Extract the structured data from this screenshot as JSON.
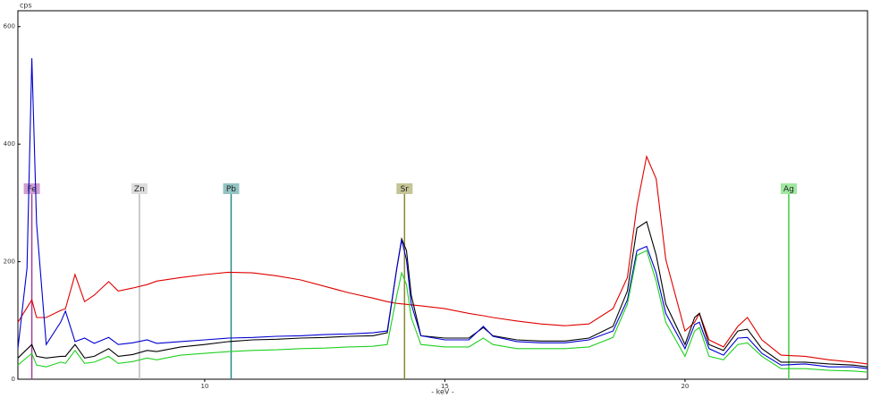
{
  "chart_data": {
    "type": "line",
    "y_label": "cps",
    "x_label": "- keV -",
    "xlim": [
      6.11,
      23.8
    ],
    "ylim": [
      0,
      627
    ],
    "xticks": [
      10,
      15,
      20
    ],
    "yticks": [
      0,
      200,
      400,
      600
    ],
    "markers": [
      {
        "label": "Fe",
        "x": 6.4,
        "color": "#a0409a"
      },
      {
        "label": "Zn",
        "x": 8.64,
        "color": "#bbbbbb"
      },
      {
        "label": "Pb",
        "x": 10.55,
        "color": "#2a8a8a"
      },
      {
        "label": "Sr",
        "x": 14.16,
        "color": "#8a8a30"
      },
      {
        "label": "Ag",
        "x": 22.16,
        "color": "#40d040"
      }
    ],
    "series": [
      {
        "color": "#e00000",
        "x": [
          6.11,
          6.4,
          6.5,
          6.7,
          7.0,
          7.1,
          7.3,
          7.5,
          7.7,
          8.0,
          8.2,
          8.5,
          8.8,
          9.0,
          9.5,
          10,
          10.5,
          11,
          11.5,
          12,
          12.5,
          13,
          13.5,
          13.8,
          14.0,
          14.5,
          15,
          15.5,
          15.8,
          16,
          16.5,
          17,
          17.5,
          18,
          18.5,
          18.8,
          19.0,
          19.2,
          19.4,
          19.6,
          20,
          20.2,
          20.3,
          20.5,
          20.8,
          21.1,
          21.3,
          21.6,
          22,
          22.5,
          23,
          23.5,
          23.8
        ],
        "values": [
          97,
          135,
          105,
          105,
          117,
          120,
          178,
          132,
          143,
          166,
          150,
          155,
          161,
          167,
          173,
          178,
          182,
          181,
          176,
          169,
          158,
          147,
          138,
          132,
          129,
          125,
          120,
          112,
          108,
          105,
          99,
          94,
          91,
          94,
          120,
          173,
          295,
          379,
          341,
          204,
          82,
          97,
          112,
          67,
          55,
          90,
          105,
          67,
          41,
          39,
          33,
          29,
          26
        ]
      },
      {
        "color": "#000000",
        "x": [
          6.11,
          6.4,
          6.5,
          6.7,
          7.0,
          7.1,
          7.3,
          7.5,
          7.7,
          8.0,
          8.2,
          8.5,
          8.8,
          9.0,
          9.5,
          10,
          10.5,
          11,
          11.5,
          12,
          12.5,
          13,
          13.5,
          13.8,
          14.0,
          14.1,
          14.2,
          14.3,
          14.5,
          15,
          15.5,
          15.8,
          16,
          16.5,
          17,
          17.5,
          18,
          18.5,
          18.8,
          19.0,
          19.2,
          19.4,
          19.6,
          20,
          20.2,
          20.3,
          20.5,
          20.8,
          21.1,
          21.3,
          21.6,
          22,
          22.5,
          23,
          23.5,
          23.8
        ],
        "values": [
          36,
          59,
          39,
          36,
          39,
          39,
          59,
          36,
          39,
          52,
          39,
          42,
          49,
          47,
          55,
          59,
          64,
          67,
          68,
          70,
          71,
          73,
          74,
          79,
          189,
          239,
          219,
          143,
          74,
          70,
          70,
          88,
          74,
          67,
          65,
          65,
          70,
          90,
          150,
          257,
          268,
          211,
          128,
          59,
          105,
          112,
          59,
          49,
          82,
          85,
          52,
          29,
          29,
          26,
          24,
          21
        ]
      },
      {
        "color": "#0000d0",
        "x": [
          6.11,
          6.3,
          6.4,
          6.5,
          6.7,
          7.0,
          7.1,
          7.3,
          7.5,
          7.7,
          8.0,
          8.2,
          8.5,
          8.8,
          9.0,
          9.5,
          10,
          10.5,
          11,
          11.5,
          12,
          12.5,
          13,
          13.5,
          13.8,
          14.0,
          14.1,
          14.2,
          14.3,
          14.5,
          15,
          15.5,
          15.8,
          16,
          16.5,
          17,
          17.5,
          18,
          18.5,
          18.8,
          19.0,
          19.2,
          19.4,
          19.6,
          20,
          20.2,
          20.3,
          20.5,
          20.8,
          21.1,
          21.3,
          21.6,
          22,
          22.5,
          23,
          23.5,
          23.8
        ],
        "values": [
          52,
          189,
          546,
          265,
          59,
          97,
          116,
          64,
          70,
          61,
          71,
          59,
          62,
          67,
          61,
          64,
          67,
          70,
          71,
          73,
          74,
          76,
          77,
          79,
          82,
          189,
          237,
          203,
          128,
          74,
          67,
          67,
          90,
          73,
          64,
          62,
          62,
          67,
          82,
          135,
          219,
          226,
          181,
          112,
          52,
          93,
          97,
          52,
          41,
          70,
          71,
          44,
          24,
          26,
          21,
          21,
          18
        ]
      },
      {
        "color": "#20d020",
        "x": [
          6.11,
          6.4,
          6.5,
          6.7,
          7.0,
          7.1,
          7.3,
          7.5,
          7.7,
          8.0,
          8.2,
          8.5,
          8.8,
          9.0,
          9.5,
          10,
          10.5,
          11,
          11.5,
          12,
          12.5,
          13,
          13.5,
          13.8,
          14.0,
          14.1,
          14.2,
          14.3,
          14.5,
          15,
          15.5,
          15.8,
          16,
          16.5,
          17,
          17.5,
          18,
          18.5,
          18.8,
          19.0,
          19.2,
          19.4,
          19.6,
          20,
          20.2,
          20.3,
          20.5,
          20.8,
          21.1,
          21.3,
          21.6,
          22,
          22.5,
          23,
          23.5,
          23.8
        ],
        "values": [
          24,
          44,
          24,
          21,
          29,
          27,
          49,
          27,
          29,
          39,
          27,
          30,
          36,
          33,
          41,
          44,
          47,
          49,
          50,
          52,
          53,
          55,
          56,
          59,
          143,
          181,
          161,
          105,
          59,
          55,
          55,
          70,
          59,
          52,
          52,
          52,
          55,
          71,
          128,
          211,
          219,
          167,
          97,
          39,
          82,
          88,
          39,
          33,
          59,
          62,
          39,
          18,
          18,
          15,
          14,
          12
        ]
      }
    ]
  }
}
